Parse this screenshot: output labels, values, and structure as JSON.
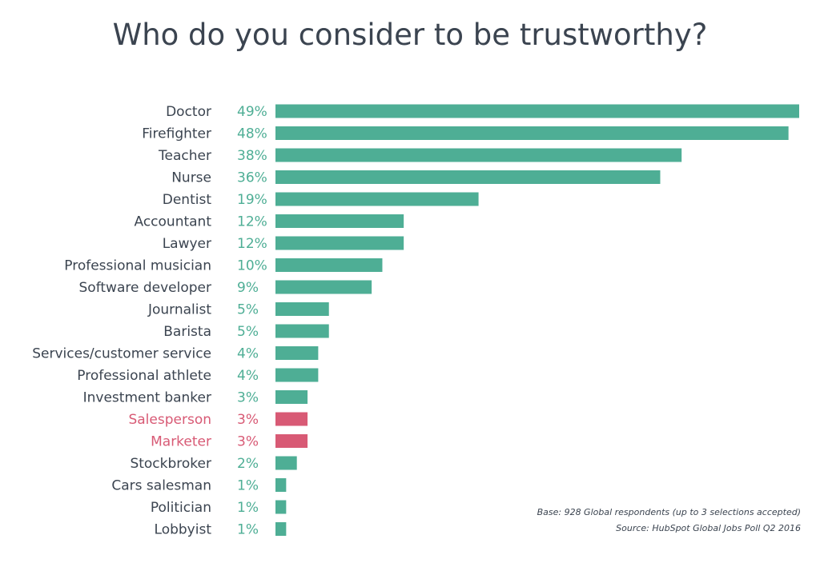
{
  "chart_data": {
    "type": "bar",
    "orientation": "horizontal",
    "title": "Who do you consider to be trustworthy?",
    "categories": [
      "Doctor",
      "Firefighter",
      "Teacher",
      "Nurse",
      "Dentist",
      "Accountant",
      "Lawyer",
      "Professional musician",
      "Software developer",
      "Journalist",
      "Barista",
      "Services/customer service",
      "Professional athlete",
      "Investment banker",
      "Salesperson",
      "Marketer",
      "Stockbroker",
      "Cars salesman",
      "Politician",
      "Lobbyist"
    ],
    "values": [
      49,
      48,
      38,
      36,
      19,
      12,
      12,
      10,
      9,
      5,
      5,
      4,
      4,
      3,
      3,
      3,
      2,
      1,
      1,
      1
    ],
    "value_labels": [
      "49%",
      "48%",
      "38%",
      "36%",
      "19%",
      "12%",
      "12%",
      "10%",
      "9%",
      "5%",
      "5%",
      "4%",
      "4%",
      "3%",
      "3%",
      "3%",
      "2%",
      "1%",
      "1%",
      "1%"
    ],
    "highlighted": [
      "Salesperson",
      "Marketer"
    ],
    "xlim": [
      0,
      49
    ],
    "grid": false,
    "colors": {
      "bar": "#4eae95",
      "highlight": "#d85a75",
      "label": "#3b4450"
    },
    "notes": [
      "Base: 928 Global respondents (up to 3 selections accepted)",
      "Source: HubSpot Global Jobs Poll Q2 2016"
    ]
  }
}
